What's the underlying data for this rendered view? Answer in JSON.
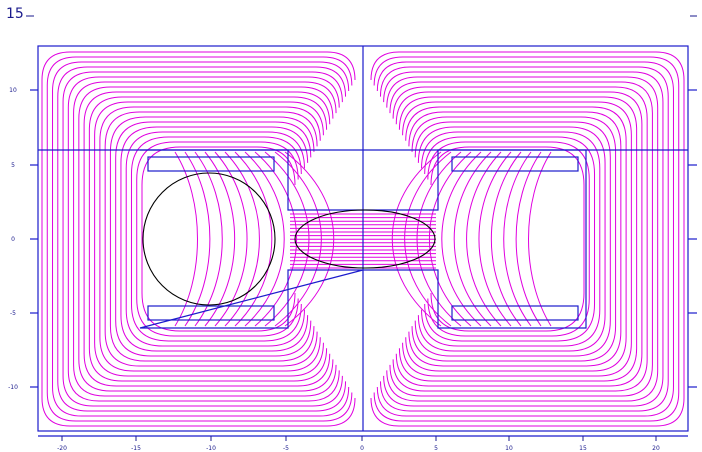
{
  "corner_label": "15",
  "x_ticks": [
    "-20",
    "-15",
    "-10",
    "-5",
    "0",
    "5",
    "10",
    "15",
    "20"
  ],
  "y_ticks": [
    "10",
    "5",
    "0",
    "-5",
    "-10"
  ],
  "colors": {
    "frame": "#1c1ccc",
    "field_lines": "#e000e0",
    "outline": "#000000",
    "background": "#ffffff"
  }
}
